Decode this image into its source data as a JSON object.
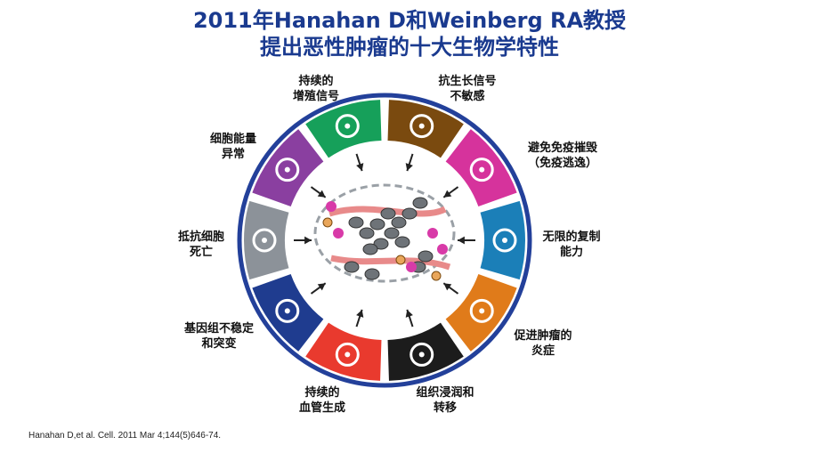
{
  "title": {
    "line1": "2011年Hanahan D和Weinberg RA教授",
    "line2": "提出恶性肿瘤的十大生物学特性"
  },
  "hallmarks": [
    {
      "line1": "抗生长信号",
      "line2": "不敏感",
      "color": "#7a4a0f",
      "icon": "no-entry-icon"
    },
    {
      "line1": "避免免疫摧毁",
      "line2": "（免疫逃逸）",
      "color": "#d6339c",
      "icon": "immune-cell-icon"
    },
    {
      "line1": "无限的复制",
      "line2": "能力",
      "color": "#1b7fb8",
      "icon": "infinity-icon"
    },
    {
      "line1": "促进肿瘤的",
      "line2": "炎症",
      "color": "#e07b1a",
      "icon": "flame-icon"
    },
    {
      "line1": "组织浸润和",
      "line2": "转移",
      "color": "#1c1c1c",
      "icon": "migrating-cell-icon"
    },
    {
      "line1": "持续的",
      "line2": "血管生成",
      "color": "#e93a2e",
      "icon": "blood-vessel-icon"
    },
    {
      "line1": "基因组不稳定",
      "line2": "和突变",
      "color": "#1f3c8f",
      "icon": "dna-icon"
    },
    {
      "line1": "抵抗细胞",
      "line2": "死亡",
      "color": "#8c9299",
      "icon": "cross-icon"
    },
    {
      "line1": "细胞能量",
      "line2": "异常",
      "color": "#8a3fa0",
      "icon": "atom-icon"
    },
    {
      "line1": "持续的",
      "line2": "增殖信号",
      "color": "#16a05a",
      "icon": "arrow-up-right-icon"
    }
  ],
  "ring_color": "#23409a",
  "citation": "Hanahan D,et al. Cell. 2011 Mar 4;144(5)646-74."
}
